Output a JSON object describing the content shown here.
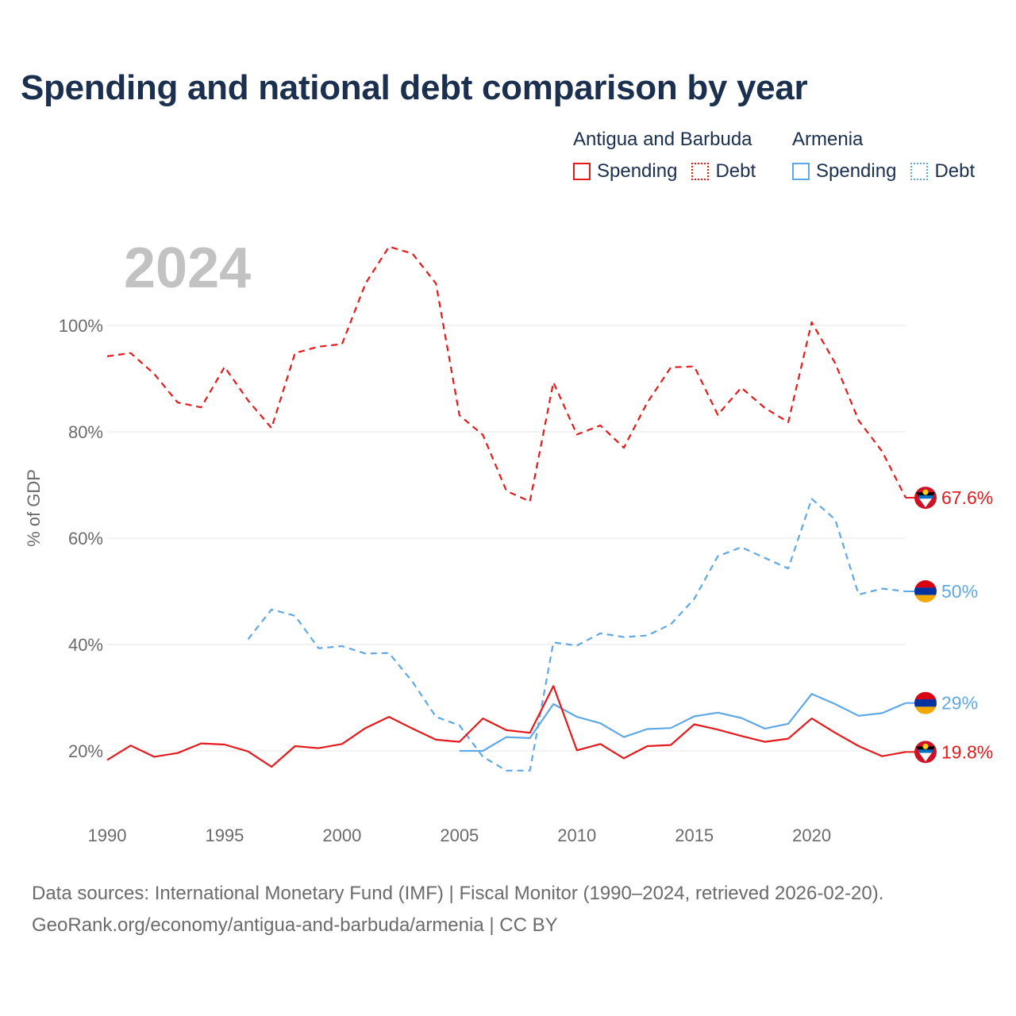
{
  "header": {
    "title": "Spending and national debt comparison by year"
  },
  "legend": {
    "groups": [
      {
        "name": "Antigua and Barbuda",
        "color": "#e41a1c",
        "items": [
          {
            "label": "Spending",
            "style": "solid"
          },
          {
            "label": "Debt",
            "style": "dotted"
          }
        ]
      },
      {
        "name": "Armenia",
        "color": "#5fa8e6",
        "items": [
          {
            "label": "Spending",
            "style": "solid"
          },
          {
            "label": "Debt",
            "style": "dotted"
          }
        ]
      }
    ]
  },
  "chart_data": {
    "type": "line",
    "title": "Spending and national debt comparison by year",
    "year_overlay": "2024",
    "xlabel": "",
    "ylabel": "% of GDP",
    "xlim": [
      1990,
      2024
    ],
    "ylim": [
      10,
      115
    ],
    "x_ticks": [
      "1990",
      "1995",
      "2000",
      "2005",
      "2010",
      "2015",
      "2020"
    ],
    "y_ticks": [
      "20%",
      "40%",
      "60%",
      "80%",
      "100%"
    ],
    "grid": true,
    "series": [
      {
        "name": "Antigua and Barbuda Debt",
        "country": "Antigua and Barbuda",
        "color": "#e41a1c",
        "dash": true,
        "start_year": 1990,
        "values": [
          94.2,
          94.8,
          90.9,
          85.5,
          84.6,
          92.2,
          85.9,
          80.7,
          94.8,
          96.0,
          96.5,
          107.9,
          114.8,
          113.5,
          107.9,
          83.1,
          79.4,
          68.9,
          66.9,
          89.3,
          79.5,
          81.2,
          77.0,
          85.5,
          92.1,
          92.3,
          83.2,
          88.3,
          84.5,
          81.8,
          100.6,
          92.9,
          82.1,
          76.3,
          67.6
        ],
        "end_label": "67.6%"
      },
      {
        "name": "Armenia Debt",
        "country": "Armenia",
        "color": "#5fa8e6",
        "dash": true,
        "start_year": 1996,
        "values": [
          41.0,
          46.6,
          45.4,
          39.3,
          39.7,
          38.3,
          38.4,
          33.0,
          26.4,
          24.8,
          18.9,
          16.3,
          16.3,
          40.4,
          39.8,
          42.1,
          41.4,
          41.7,
          43.8,
          48.6,
          56.6,
          58.3,
          56.3,
          54.3,
          67.4,
          63.5,
          49.4,
          50.5,
          50.0
        ],
        "end_label": "50%"
      },
      {
        "name": "Armenia Spending",
        "country": "Armenia",
        "color": "#5fa8e6",
        "dash": false,
        "start_year": 2005,
        "values": [
          20.0,
          20.0,
          22.6,
          22.4,
          28.8,
          26.4,
          25.2,
          22.6,
          24.1,
          24.3,
          26.5,
          27.2,
          26.2,
          24.2,
          25.1,
          30.7,
          28.8,
          26.6,
          27.1,
          29.0
        ],
        "end_label": "29%"
      },
      {
        "name": "Antigua and Barbuda Spending",
        "country": "Antigua and Barbuda",
        "color": "#e41a1c",
        "dash": false,
        "start_year": 1990,
        "values": [
          18.3,
          21.0,
          18.9,
          19.6,
          21.4,
          21.2,
          19.9,
          17.0,
          20.9,
          20.5,
          21.3,
          24.3,
          26.4,
          24.2,
          22.1,
          21.7,
          26.1,
          23.9,
          23.4,
          32.2,
          20.1,
          21.3,
          18.6,
          20.9,
          21.1,
          25.0,
          24.0,
          22.8,
          21.7,
          22.3,
          26.1,
          23.4,
          20.9,
          19.0,
          19.8
        ],
        "end_label": "19.8%"
      }
    ]
  },
  "footer": {
    "source_line1": "Data sources: International Monetary Fund (IMF) | Fiscal Monitor (1990–2024, retrieved 2026-02-20).",
    "source_line2": "GeoRank.org/economy/antigua-and-barbuda/armenia | CC BY"
  }
}
